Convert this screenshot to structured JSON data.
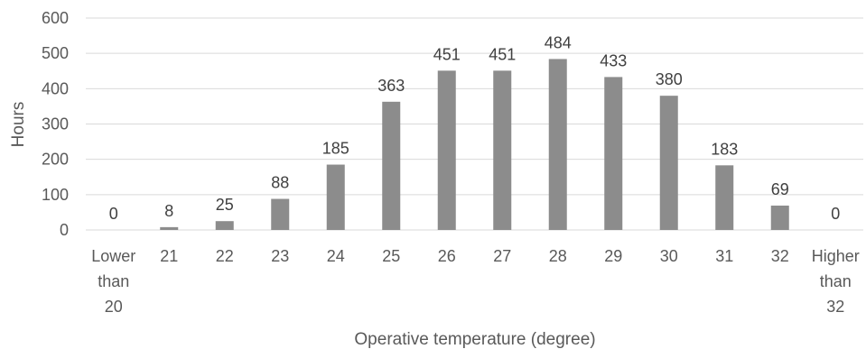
{
  "chart_data": {
    "type": "bar",
    "categories": [
      [
        "Lower",
        "than",
        "20"
      ],
      [
        "21"
      ],
      [
        "22"
      ],
      [
        "23"
      ],
      [
        "24"
      ],
      [
        "25"
      ],
      [
        "26"
      ],
      [
        "27"
      ],
      [
        "28"
      ],
      [
        "29"
      ],
      [
        "30"
      ],
      [
        "31"
      ],
      [
        "32"
      ],
      [
        "Higher",
        "than",
        "32"
      ]
    ],
    "values": [
      0,
      8,
      25,
      88,
      185,
      363,
      451,
      451,
      484,
      433,
      380,
      183,
      69,
      0
    ],
    "xlabel": "Operative temperature (degree)",
    "ylabel": "Hours",
    "ylim": [
      0,
      600
    ],
    "yticks": [
      0,
      100,
      200,
      300,
      400,
      500,
      600
    ],
    "grid": true,
    "legend": "none",
    "bar_color": "#8c8c8c",
    "data_labels": true
  }
}
